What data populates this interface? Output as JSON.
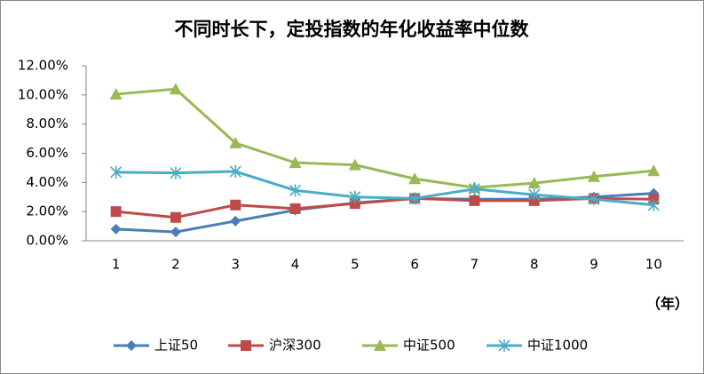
{
  "chart_data": {
    "type": "line",
    "title": "不同时长下，定投指数的年化收益率中位数",
    "x_label": "（年）",
    "categories": [
      "1",
      "2",
      "3",
      "4",
      "5",
      "6",
      "7",
      "8",
      "9",
      "10"
    ],
    "series": [
      {
        "name": "上证50",
        "color": "#4a7ebb",
        "marker": "diamond",
        "values": [
          0.8,
          0.6,
          1.35,
          2.1,
          2.6,
          2.9,
          2.85,
          2.85,
          3.0,
          3.25
        ]
      },
      {
        "name": "沪深300",
        "color": "#be4b48",
        "marker": "square",
        "values": [
          2.0,
          1.6,
          2.45,
          2.2,
          2.55,
          2.9,
          2.75,
          2.75,
          2.9,
          2.85
        ]
      },
      {
        "name": "中证500",
        "color": "#98b954",
        "marker": "triangle",
        "values": [
          10.05,
          10.4,
          6.7,
          5.35,
          5.2,
          4.25,
          3.65,
          3.95,
          4.4,
          4.8
        ]
      },
      {
        "name": "中证1000",
        "color": "#4bacc6",
        "marker": "asterisk",
        "values": [
          4.7,
          4.65,
          4.75,
          3.45,
          3.0,
          2.9,
          3.55,
          3.15,
          2.85,
          2.45
        ]
      }
    ],
    "ylim": [
      0,
      12
    ],
    "yticks": [
      {
        "value": 0,
        "label": "0.00%"
      },
      {
        "value": 2,
        "label": "2.00%"
      },
      {
        "value": 4,
        "label": "4.00%"
      },
      {
        "value": 6,
        "label": "6.00%"
      },
      {
        "value": 8,
        "label": "8.00%"
      },
      {
        "value": 10,
        "label": "10.00%"
      },
      {
        "value": 12,
        "label": "12.00%"
      }
    ],
    "legend": "bottom"
  }
}
